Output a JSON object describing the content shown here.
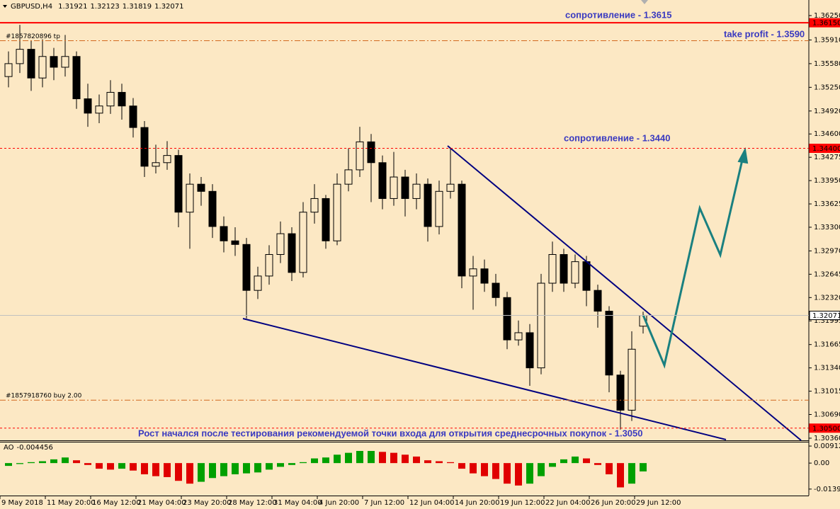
{
  "chart_data": {
    "type": "candlestick",
    "symbol": "GBPUSD,H4",
    "candles": {
      "open": [
        1.354,
        1.3558,
        1.3578,
        1.3538,
        1.3568,
        1.3553,
        1.3568,
        1.3509,
        1.3489,
        1.3499,
        1.3518,
        1.3499,
        1.3469,
        1.3415,
        1.342,
        1.343,
        1.3351,
        1.339,
        1.338,
        1.3331,
        1.3311,
        1.3306,
        1.3242,
        1.3262,
        1.3292,
        1.3321,
        1.3267,
        1.3351,
        1.337,
        1.3311,
        1.339,
        1.341,
        1.3449,
        1.342,
        1.337,
        1.34,
        1.337,
        1.339,
        1.3331,
        1.338,
        1.339,
        1.3262,
        1.3272,
        1.3252,
        1.3232,
        1.3173,
        1.3183,
        1.3134,
        1.3252,
        1.3292,
        1.3252,
        1.3282,
        1.3242,
        1.3213,
        1.3124,
        1.3075,
        1.31921
      ],
      "high": [
        1.3575,
        1.3612,
        1.359,
        1.3592,
        1.358,
        1.3598,
        1.3575,
        1.353,
        1.3515,
        1.3535,
        1.353,
        1.351,
        1.3478,
        1.3445,
        1.345,
        1.3438,
        1.3405,
        1.34,
        1.339,
        1.3345,
        1.333,
        1.3315,
        1.3275,
        1.3305,
        1.3338,
        1.333,
        1.3365,
        1.339,
        1.3375,
        1.3405,
        1.344,
        1.347,
        1.346,
        1.343,
        1.3435,
        1.341,
        1.3405,
        1.3398,
        1.3395,
        1.344,
        1.3395,
        1.329,
        1.3285,
        1.3265,
        1.324,
        1.32,
        1.3195,
        1.3265,
        1.331,
        1.33,
        1.3292,
        1.329,
        1.325,
        1.322,
        1.313,
        1.3185,
        1.32123
      ],
      "low": [
        1.3525,
        1.3545,
        1.352,
        1.3525,
        1.3535,
        1.354,
        1.3495,
        1.347,
        1.3475,
        1.3488,
        1.348,
        1.3455,
        1.34,
        1.3405,
        1.341,
        1.333,
        1.33,
        1.336,
        1.3315,
        1.3295,
        1.329,
        1.3203,
        1.323,
        1.325,
        1.328,
        1.3255,
        1.326,
        1.3335,
        1.33,
        1.3305,
        1.338,
        1.34,
        1.3365,
        1.3355,
        1.336,
        1.3345,
        1.3355,
        1.331,
        1.332,
        1.337,
        1.3245,
        1.3215,
        1.324,
        1.322,
        1.316,
        1.3165,
        1.3109,
        1.3125,
        1.324,
        1.324,
        1.3245,
        1.322,
        1.319,
        1.31,
        1.3048,
        1.306,
        1.31819
      ],
      "close": [
        1.3558,
        1.3578,
        1.3538,
        1.3568,
        1.3553,
        1.3568,
        1.3509,
        1.3489,
        1.3499,
        1.3518,
        1.3499,
        1.3469,
        1.3415,
        1.342,
        1.343,
        1.3351,
        1.339,
        1.338,
        1.3331,
        1.3311,
        1.3306,
        1.3242,
        1.3262,
        1.3292,
        1.3321,
        1.3267,
        1.3351,
        1.337,
        1.3311,
        1.339,
        1.341,
        1.3449,
        1.342,
        1.337,
        1.34,
        1.337,
        1.339,
        1.3331,
        1.338,
        1.339,
        1.3262,
        1.3272,
        1.3252,
        1.3232,
        1.3173,
        1.3183,
        1.3134,
        1.3252,
        1.3292,
        1.3252,
        1.3282,
        1.3242,
        1.3213,
        1.3124,
        1.3075,
        1.316,
        1.32071
      ]
    },
    "up_color": "#fce8c4",
    "down_color": "#000000",
    "xlim": [
      -0.75,
      70.625
    ],
    "xticks": [
      {
        "value": -0.75,
        "label": "9 May 2018"
      },
      {
        "value": 3.25,
        "label": "11 May 20:00"
      },
      {
        "value": 7.25,
        "label": "16 May 12:00"
      },
      {
        "value": 11.25,
        "label": "21 May 04:00"
      },
      {
        "value": 15.25,
        "label": "23 May 20:00"
      },
      {
        "value": 19.25,
        "label": "28 May 12:00"
      },
      {
        "value": 23.25,
        "label": "31 May 04:00"
      },
      {
        "value": 27.25,
        "label": "4 Jun 20:00"
      },
      {
        "value": 31.25,
        "label": "7 Jun 12:00"
      },
      {
        "value": 35.25,
        "label": "12 Jun 04:00"
      },
      {
        "value": 39.25,
        "label": "14 Jun 20:00"
      },
      {
        "value": 43.25,
        "label": "19 Jun 12:00"
      },
      {
        "value": 47.25,
        "label": "22 Jun 04:00"
      },
      {
        "value": 51.25,
        "label": "26 Jun 20:00"
      },
      {
        "value": 55.25,
        "label": "29 Jun 12:00"
      }
    ],
    "ylim": [
      1.3033,
      1.36467
    ],
    "yticks": [
      {
        "value": 1.3625,
        "label": "1.36250"
      },
      {
        "value": 1.3591,
        "label": "1.35910"
      },
      {
        "value": 1.3558,
        "label": "1.35580"
      },
      {
        "value": 1.3525,
        "label": "1.35250"
      },
      {
        "value": 1.3492,
        "label": "1.34920"
      },
      {
        "value": 1.346,
        "label": "1.34600"
      },
      1.34275,
      {
        "value": 1.3395,
        "label": "1.33950"
      },
      1.33625,
      {
        "value": 1.333,
        "label": "1.33300"
      },
      {
        "value": 1.3297,
        "label": "1.32970"
      },
      1.32645,
      {
        "value": 1.3232,
        "label": "1.32320"
      },
      1.31995,
      1.31665,
      {
        "value": 1.3134,
        "label": "1.31340"
      },
      1.31015,
      {
        "value": 1.3069,
        "label": "1.30690"
      },
      {
        "value": 1.3036,
        "label": "1.30360"
      }
    ],
    "levels": [
      {
        "value": 1.3615,
        "label": "1.36150",
        "color": "#ff0000",
        "style": "solid"
      },
      {
        "value": 1.344,
        "label": "1.34400",
        "color": "#ff0000",
        "style": "dash"
      },
      {
        "value": 1.32071,
        "color": "#c0c0c0",
        "style": "solid"
      },
      {
        "value": 1.305,
        "label": "1.30500",
        "color": "#ff0000",
        "style": "dash"
      }
    ],
    "orders": [
      {
        "text": "#1857820896 tp",
        "value": 1.359,
        "color": "#d2691e"
      },
      {
        "text": "#1857918760 buy 2.00",
        "value": 1.3089,
        "color": "#d2691e"
      }
    ],
    "annotations": [
      "сопротивление - 1.3615",
      "take profit - 1.3590",
      "сопротивление - 1.3440",
      "Рост начался после тестирования рекомендуемой точки входа для открытия среднесрочных покупок - 1.3050"
    ],
    "indicator": {
      "name": "AO",
      "up_color": "#00a000",
      "down_color": "#e00000",
      "ylim": [
        -0.01737,
        0.01142
      ],
      "yticks": [
        0.009121,
        {
          "value": 0,
          "label": "0.00"
        },
        -0.013907
      ],
      "values": [
        -0.0015,
        -0.0005,
        0.0005,
        0.001,
        0.002,
        0.003,
        0.0015,
        -0.001,
        -0.003,
        -0.0035,
        -0.003,
        -0.004,
        -0.006,
        -0.007,
        -0.0075,
        -0.0095,
        -0.011,
        -0.01,
        -0.008,
        -0.007,
        -0.006,
        -0.0055,
        -0.005,
        -0.0035,
        -0.002,
        -0.001,
        0.0005,
        0.0025,
        0.003,
        0.0045,
        0.0055,
        0.0065,
        0.0065,
        0.006,
        0.0055,
        0.0045,
        0.0035,
        0.0015,
        0.001,
        0.0005,
        -0.003,
        -0.0055,
        -0.007,
        -0.0085,
        -0.011,
        -0.012,
        -0.011,
        -0.007,
        -0.002,
        0.002,
        0.0035,
        0.0025,
        -0.001,
        -0.006,
        -0.013,
        -0.011,
        -0.004456
      ]
    }
  }
}
